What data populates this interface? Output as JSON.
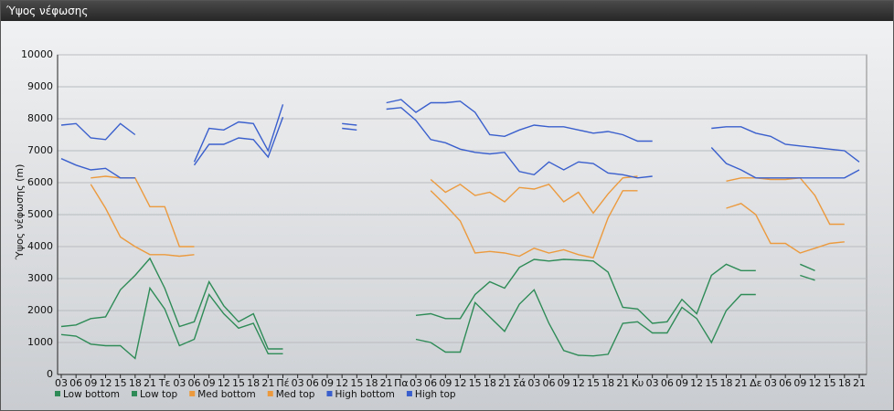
{
  "chart_data": {
    "type": "line",
    "title": "Ύψος νέφωσης",
    "y_label": "Ύψος νέφωσης (m)",
    "categories": [
      "03",
      "06",
      "09",
      "12",
      "15",
      "18",
      "21",
      "Τε",
      "03",
      "06",
      "09",
      "12",
      "15",
      "18",
      "21",
      "Πέ",
      "03",
      "06",
      "09",
      "12",
      "15",
      "18",
      "21",
      "Πα",
      "03",
      "06",
      "09",
      "12",
      "15",
      "18",
      "21",
      "Σά",
      "03",
      "06",
      "09",
      "12",
      "15",
      "18",
      "21",
      "Κυ",
      "03",
      "06",
      "09",
      "12",
      "15",
      "18",
      "21",
      "Δε",
      "03",
      "06",
      "09",
      "12",
      "15",
      "18",
      "21"
    ],
    "ylim": [
      0,
      10000
    ],
    "yticks": [
      0,
      1000,
      2000,
      3000,
      4000,
      5000,
      6000,
      7000,
      8000,
      9000,
      10000
    ],
    "grid": true,
    "series": [
      {
        "name": "Low bottom",
        "color": "#2e8b57",
        "values": [
          1250,
          1200,
          950,
          900,
          900,
          500,
          2700,
          2050,
          900,
          1100,
          2500,
          1900,
          1450,
          1600,
          650,
          650,
          null,
          null,
          null,
          null,
          null,
          null,
          null,
          null,
          1100,
          1000,
          700,
          700,
          2250,
          1800,
          1350,
          2200,
          2650,
          1600,
          750,
          600,
          580,
          630,
          1600,
          1650,
          1300,
          1300,
          2100,
          1750,
          1000,
          2000,
          2500,
          2500,
          null,
          null,
          3100,
          2950,
          null,
          null,
          null
        ]
      },
      {
        "name": "Low top",
        "color": "#2e8b57",
        "values": [
          1500,
          1550,
          1750,
          1800,
          2650,
          3100,
          3630,
          2700,
          1500,
          1650,
          2900,
          2150,
          1650,
          1900,
          800,
          800,
          null,
          null,
          null,
          null,
          null,
          null,
          null,
          null,
          1850,
          1900,
          1750,
          1750,
          2500,
          2900,
          2700,
          3350,
          3600,
          3550,
          3600,
          3580,
          3550,
          3200,
          2100,
          2050,
          1600,
          1650,
          2350,
          1900,
          3100,
          3450,
          3250,
          3250,
          null,
          null,
          3450,
          3250,
          null,
          null,
          null
        ]
      },
      {
        "name": "Med bottom",
        "color": "#ec9a3e",
        "values": [
          null,
          null,
          5950,
          5200,
          4300,
          4000,
          3750,
          3750,
          3700,
          3750,
          null,
          null,
          null,
          null,
          null,
          null,
          null,
          null,
          null,
          null,
          null,
          null,
          null,
          null,
          null,
          5750,
          5300,
          4800,
          3800,
          3850,
          3800,
          3700,
          3950,
          3800,
          3900,
          3750,
          3650,
          4900,
          5750,
          5750,
          null,
          null,
          null,
          null,
          null,
          5200,
          5350,
          5000,
          4100,
          4100,
          3800,
          3950,
          4100,
          4150,
          null
        ]
      },
      {
        "name": "Med top",
        "color": "#ec9a3e",
        "values": [
          null,
          null,
          6150,
          6200,
          6150,
          6150,
          5250,
          5250,
          4000,
          4000,
          null,
          null,
          null,
          null,
          null,
          null,
          null,
          null,
          null,
          null,
          null,
          null,
          null,
          null,
          null,
          6100,
          5700,
          5950,
          5600,
          5700,
          5400,
          5850,
          5800,
          5950,
          5400,
          5700,
          5050,
          5650,
          6150,
          6200,
          null,
          null,
          null,
          null,
          null,
          6050,
          6150,
          6150,
          6100,
          6100,
          6150,
          5600,
          4700,
          4700,
          null
        ]
      },
      {
        "name": "High bottom",
        "color": "#3a5fcd",
        "values": [
          6750,
          6550,
          6400,
          6450,
          6150,
          6150,
          null,
          null,
          null,
          6550,
          7200,
          7200,
          7400,
          7350,
          6800,
          8050,
          null,
          null,
          null,
          7700,
          7650,
          null,
          8300,
          8350,
          7950,
          7350,
          7250,
          7050,
          6950,
          6900,
          6950,
          6350,
          6250,
          6650,
          6400,
          6650,
          6600,
          6300,
          6250,
          6150,
          6200,
          null,
          null,
          null,
          7100,
          6600,
          6400,
          6150,
          6150,
          6150,
          6150,
          6150,
          6150,
          6150,
          6400
        ]
      },
      {
        "name": "High top",
        "color": "#3a5fcd",
        "values": [
          7800,
          7850,
          7400,
          7350,
          7850,
          7500,
          null,
          null,
          null,
          6650,
          7700,
          7650,
          7900,
          7850,
          7000,
          8450,
          null,
          null,
          null,
          7850,
          7800,
          null,
          8500,
          8600,
          8200,
          8500,
          8500,
          8550,
          8200,
          7500,
          7450,
          7650,
          7800,
          7750,
          7750,
          7650,
          7550,
          7600,
          7500,
          7300,
          7300,
          null,
          null,
          null,
          7700,
          7750,
          7750,
          7550,
          7450,
          7200,
          7150,
          7100,
          7050,
          7000,
          6650
        ]
      }
    ]
  }
}
